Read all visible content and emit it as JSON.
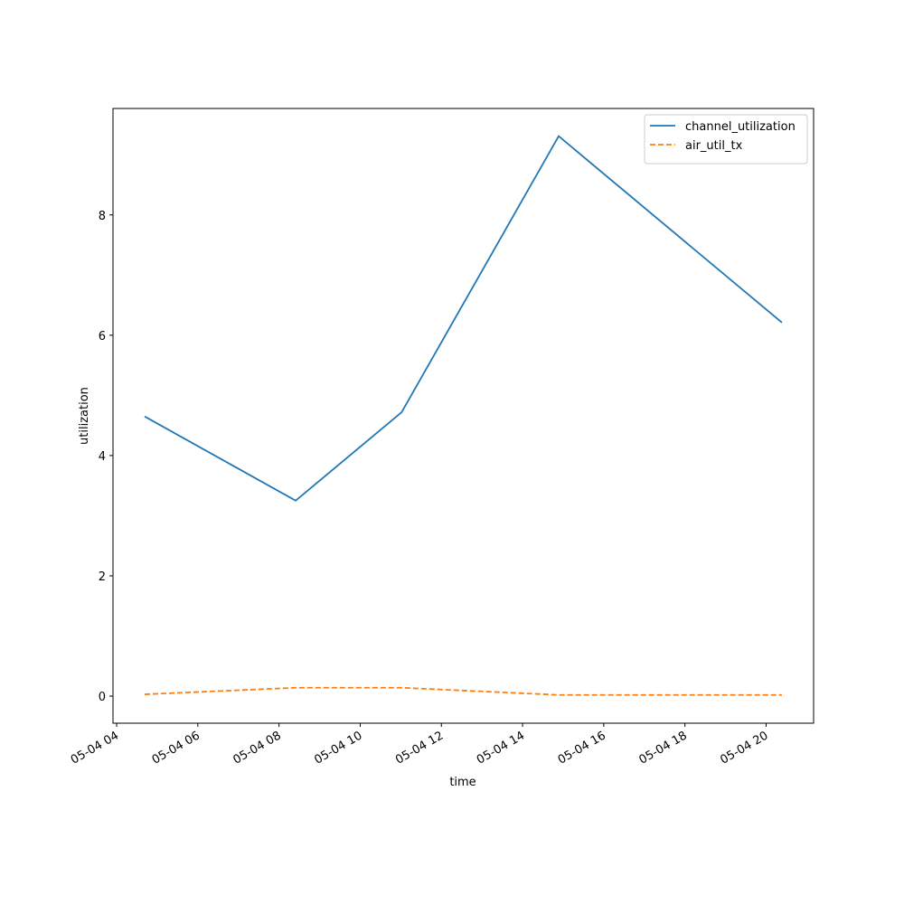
{
  "chart_data": {
    "type": "line",
    "xlabel": "time",
    "ylabel": "utilization",
    "x": [
      4.69,
      8.41,
      11.02,
      14.89,
      20.39
    ],
    "series": [
      {
        "name": "channel_utilization",
        "color": "#1f77b4",
        "dash": "solid",
        "values": [
          4.65,
          3.25,
          4.72,
          9.31,
          6.21
        ]
      },
      {
        "name": "air_util_tx",
        "color": "#ff7f0e",
        "dash": "dashed",
        "values": [
          0.03,
          0.14,
          0.14,
          0.02,
          0.02
        ]
      }
    ],
    "xlim": [
      3.91,
      21.17
    ],
    "xticks": [
      {
        "value": 4,
        "label": "05-04 04"
      },
      {
        "value": 6,
        "label": "05-04 06"
      },
      {
        "value": 8,
        "label": "05-04 08"
      },
      {
        "value": 10,
        "label": "05-04 10"
      },
      {
        "value": 12,
        "label": "05-04 12"
      },
      {
        "value": 14,
        "label": "05-04 14"
      },
      {
        "value": 16,
        "label": "05-04 16"
      },
      {
        "value": 18,
        "label": "05-04 18"
      },
      {
        "value": 20,
        "label": "05-04 20"
      }
    ],
    "ylim": [
      -0.45,
      9.77
    ],
    "yticks": [
      0,
      2,
      4,
      6,
      8
    ],
    "grid": false,
    "legend": "upper-right"
  }
}
